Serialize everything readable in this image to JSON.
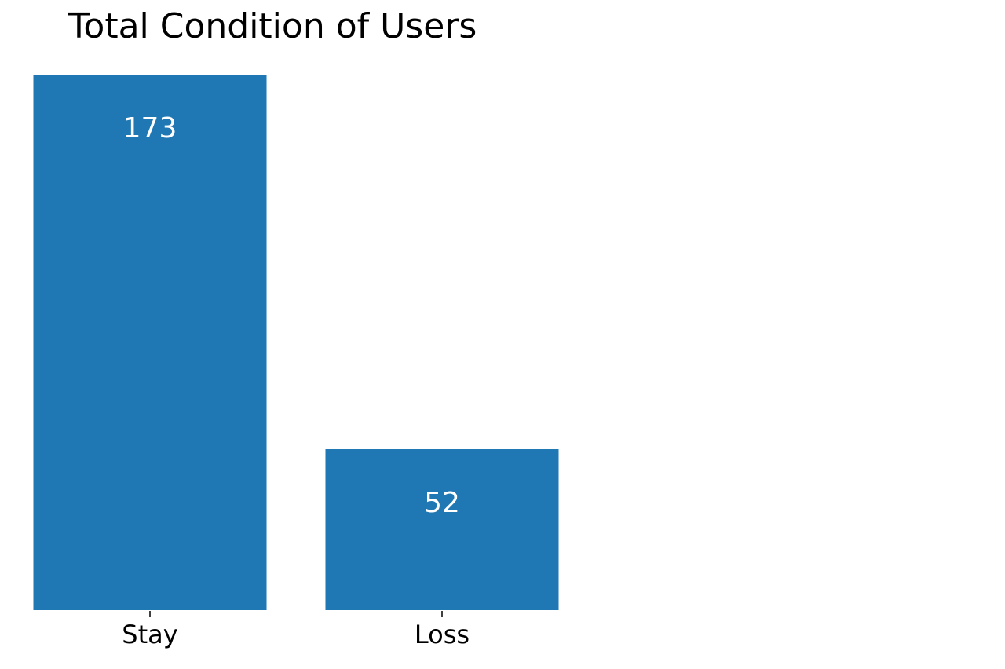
{
  "chart_data": {
    "type": "bar",
    "title": "Total Condition of Users",
    "xlabel": "",
    "ylabel": "",
    "categories": [
      "Stay",
      "Loss"
    ],
    "values": [
      173,
      52
    ],
    "data_labels": [
      "173",
      "52"
    ],
    "ylim": [
      0,
      173
    ],
    "grid": false,
    "legend": "none",
    "bar_color": "#1f77b4",
    "label_color": "#ffffff"
  }
}
